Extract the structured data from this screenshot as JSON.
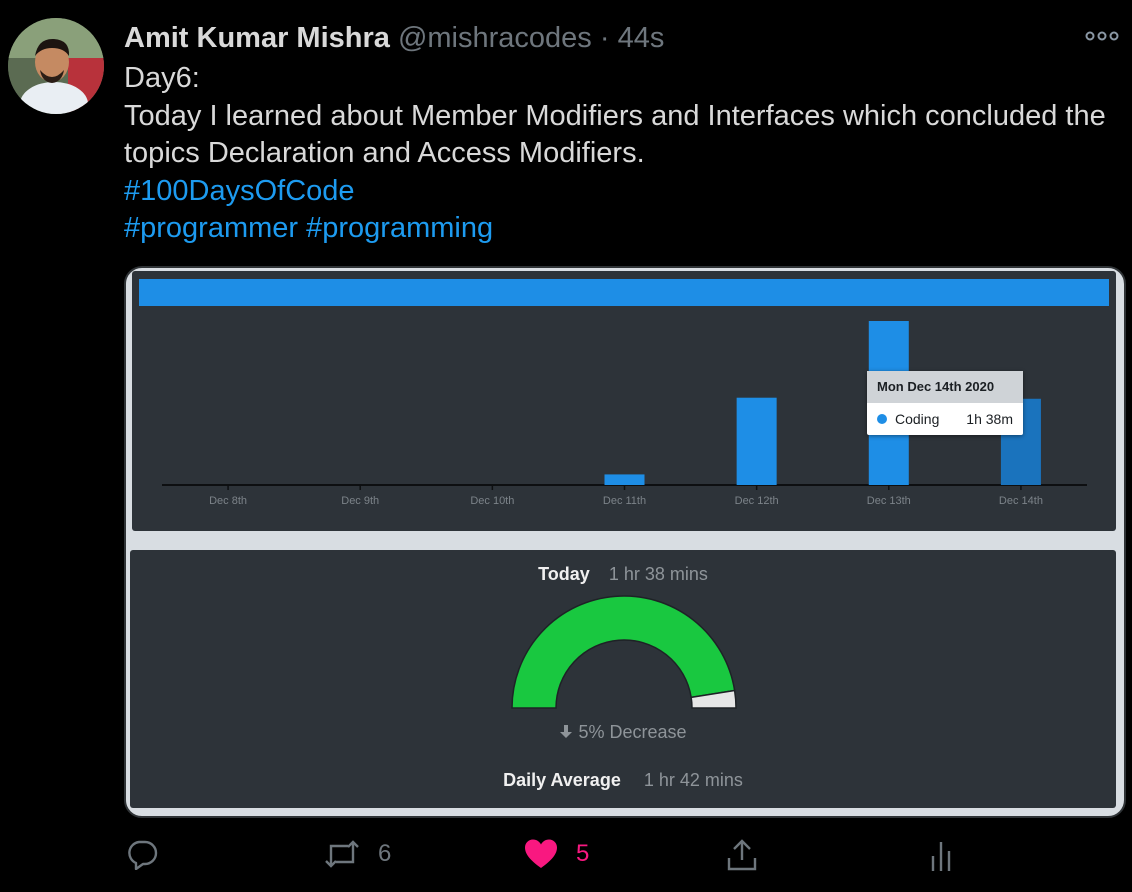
{
  "tweet": {
    "author_name": "Amit Kumar Mishra",
    "handle": "@mishracodes",
    "separator": "·",
    "time": "44s",
    "lines": [
      "Day6:",
      "Today I learned about Member Modifiers and Interfaces which concluded the",
      "topics Declaration and Access Modifiers."
    ],
    "hashtag_line1": "#100DaysOfCode",
    "hashtag_line2": "#programmer #programming"
  },
  "chart_data": {
    "type": "bar",
    "categories": [
      "Dec 8th",
      "Dec 9th",
      "Dec 10th",
      "Dec 11th",
      "Dec 12th",
      "Dec 13th",
      "Dec 14th"
    ],
    "series": [
      {
        "name": "Coding",
        "values": [
          0,
          0,
          0,
          0.2,
          1.65,
          3.1,
          1.63
        ]
      }
    ],
    "tooltip": {
      "date": "Mon Dec 14th 2020",
      "series": "Coding",
      "value": "1h 38m"
    },
    "colors": {
      "bar": "#1e8ee6",
      "highlight": "#1a73bd",
      "header": "#1e8ee6"
    }
  },
  "stats": {
    "today_label": "Today",
    "today_value": "1 hr 38 mins",
    "gauge_fraction": 0.95,
    "change_text": "5% Decrease",
    "daily_avg_label": "Daily Average",
    "daily_avg_value": "1 hr 42 mins",
    "gauge_color": "#19c840"
  },
  "actions": {
    "reply_count": "",
    "retweet_count": "6",
    "like_count": "5"
  },
  "icons": [
    "reply-icon",
    "retweet-icon",
    "heart-icon",
    "share-icon",
    "analytics-icon",
    "more-icon",
    "arrow-down-icon"
  ]
}
